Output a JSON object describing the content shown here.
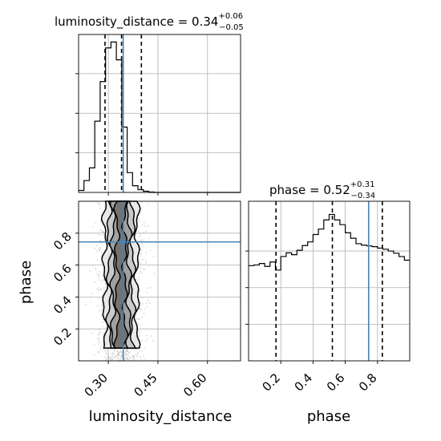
{
  "chart_data": {
    "type": "corner",
    "params": [
      "luminosity_distance",
      "phase"
    ],
    "truths": {
      "luminosity_distance": 0.345,
      "phase": 0.745
    },
    "truth_color": "#4682b4",
    "marginals": [
      {
        "param": "luminosity_distance",
        "title_main": "luminosity_distance = 0.34",
        "title_plus": "+0.06",
        "title_minus": "−0.05",
        "median": 0.34,
        "quantiles": [
          0.29,
          0.34,
          0.4
        ],
        "bin_edges": [
          0.21,
          0.2263,
          0.2427,
          0.259,
          0.2753,
          0.2917,
          0.308,
          0.3243,
          0.3407,
          0.357,
          0.3733,
          0.3897,
          0.406,
          0.4223,
          0.4387,
          0.455,
          0.4713,
          0.4877,
          0.504,
          0.5203,
          0.5367,
          0.553,
          0.5693,
          0.5857,
          0.602,
          0.6183,
          0.6347,
          0.651,
          0.6673,
          0.6837,
          0.7
        ],
        "counts": [
          5,
          30,
          62,
          180,
          280,
          365,
          380,
          335,
          165,
          50,
          17,
          7,
          3,
          1,
          0,
          0,
          0,
          0,
          0,
          0,
          0,
          0,
          0,
          0,
          0,
          0,
          0,
          0,
          0,
          0
        ]
      },
      {
        "param": "phase",
        "title_main": "phase = 0.52",
        "title_plus": "+0.31",
        "title_minus": "−0.34",
        "median": 0.52,
        "quantiles": [
          0.17,
          0.52,
          0.83
        ],
        "bin_edges": [
          0.0,
          0.0333,
          0.0667,
          0.1,
          0.1333,
          0.1667,
          0.2,
          0.2333,
          0.2667,
          0.3,
          0.3333,
          0.3667,
          0.4,
          0.4333,
          0.4667,
          0.5,
          0.5333,
          0.5667,
          0.6,
          0.6333,
          0.6667,
          0.7,
          0.7333,
          0.7667,
          0.8,
          0.8333,
          0.8667,
          0.9,
          0.9333,
          0.9667,
          1.0
        ],
        "counts": [
          260,
          262,
          266,
          258,
          270,
          248,
          285,
          295,
          290,
          302,
          315,
          325,
          345,
          360,
          385,
          400,
          385,
          372,
          350,
          335,
          320,
          316,
          314,
          312,
          308,
          305,
          300,
          294,
          285,
          275
        ]
      }
    ],
    "joint": {
      "x": "luminosity_distance",
      "y": "phase",
      "contour_levels_sigma": [
        0.5,
        1.0,
        1.5,
        2.0
      ]
    },
    "axes": {
      "luminosity_distance": {
        "range": [
          0.21,
          0.7
        ],
        "ticks": [
          0.3,
          0.45,
          0.6
        ],
        "tick_labels": [
          "0.30",
          "0.45",
          "0.60"
        ],
        "xlabel": "luminosity_distance"
      },
      "phase": {
        "range": [
          0.0,
          1.0
        ],
        "ticks": [
          0.2,
          0.4,
          0.6,
          0.8
        ],
        "tick_labels": [
          "0.2",
          "0.4",
          "0.6",
          "0.8"
        ],
        "xlabel": "phase",
        "ylabel": "phase"
      }
    },
    "grid": true
  }
}
